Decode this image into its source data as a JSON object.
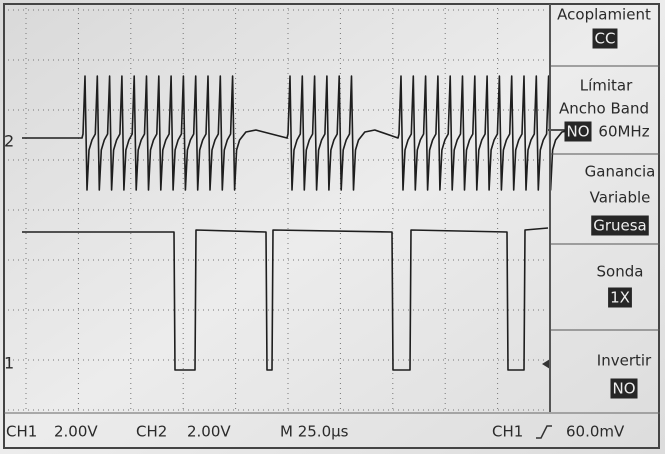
{
  "markers": {
    "ch2": "2",
    "ch1": "1"
  },
  "menu": [
    {
      "label": [
        "Acoplamient"
      ],
      "value": "CC"
    },
    {
      "label": [
        "Límitar",
        "Ancho Band"
      ],
      "value": "NO",
      "extra": "60MHz"
    },
    {
      "label": [
        "Ganancia",
        "Variable"
      ],
      "value": "Gruesa"
    },
    {
      "label": [
        "Sonda"
      ],
      "value": "1X"
    },
    {
      "label": [
        "Invertir"
      ],
      "value": "NO"
    }
  ],
  "status": {
    "ch1": "CH1",
    "ch1_scale": "2.00V",
    "ch2": "CH2",
    "ch2_scale": "2.00V",
    "timebase": "M 25.0µs",
    "trigger_source": "CH1",
    "trigger_level": "60.0mV"
  }
}
